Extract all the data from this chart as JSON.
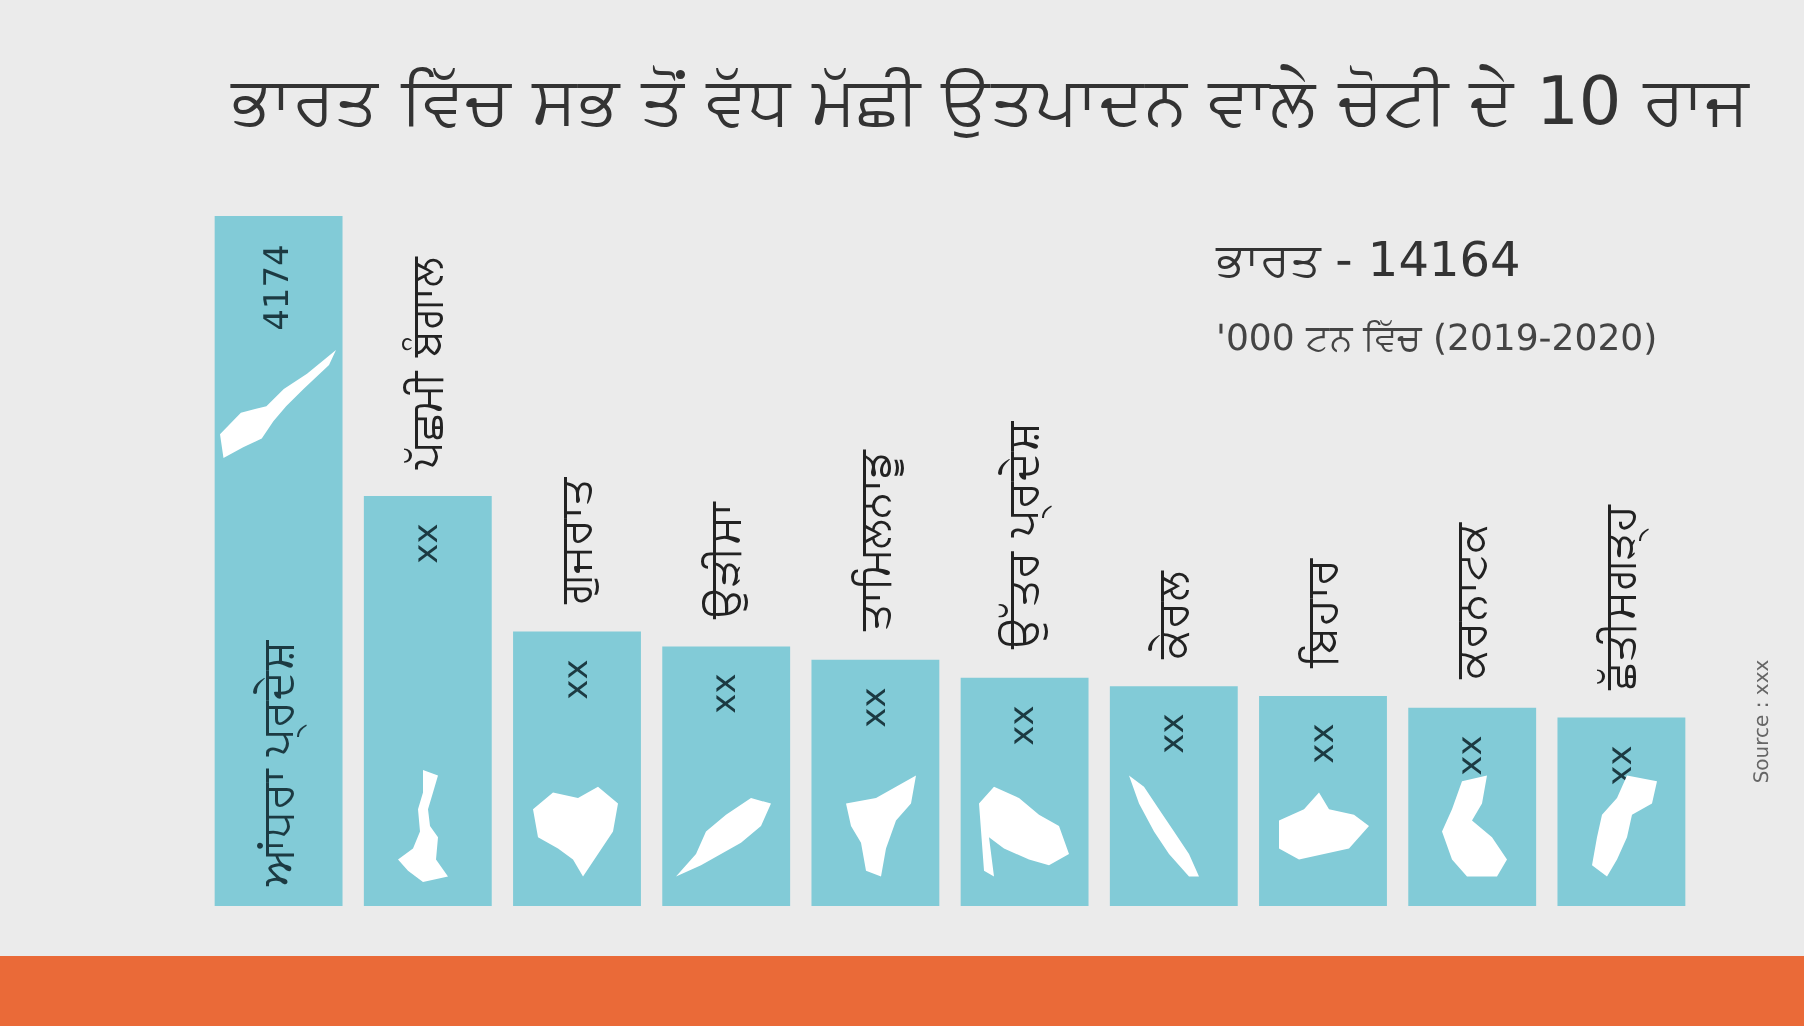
{
  "chart_data": {
    "type": "bar",
    "title": "ਭਾਰਤ ਵਿੱਚ ਸਭ ਤੋਂ ਵੱਧ ਮੱਛੀ ਉਤਪਾਦਨ ਵਾਲੇ ਚੋਟੀ ਦੇ 10 ਰਾਜ",
    "subtitle": "'000 ਟਨ ਵਿੱਚ (2019-2020)",
    "annotations": [
      "ਭਾਰਤ - 14164",
      "Source : xxx"
    ],
    "categories": [
      "ਆਂਧਰਾ ਪ੍ਰਦੇਸ਼",
      "ਪੱਛਮੀ ਬੰਗਾਲ",
      "ਗੁਜਰਾਤ",
      "ਉੜੀਸਾ",
      "ਤਾਮਿਲਨਾਡੂ",
      "ਉੱਤਰ ਪ੍ਰਦੇਸ਼",
      "ਕੇਰਲ",
      "ਬਿਹਾਰ",
      "ਕਰਨਾਟਕ",
      "ਛੱਤੀਸਗੜ੍ਹ"
    ],
    "values": [
      4174,
      2480,
      1660,
      1570,
      1490,
      1380,
      1330,
      1270,
      1200,
      1140
    ],
    "value_labels": [
      "4174",
      "xx",
      "xx",
      "xx",
      "xx",
      "xx",
      "xx",
      "xx",
      "xx",
      "xx"
    ],
    "color": "#82cbd7",
    "ylim": [
      0,
      4174
    ],
    "tick_labels": "x",
    "grid": false,
    "legend": false
  }
}
